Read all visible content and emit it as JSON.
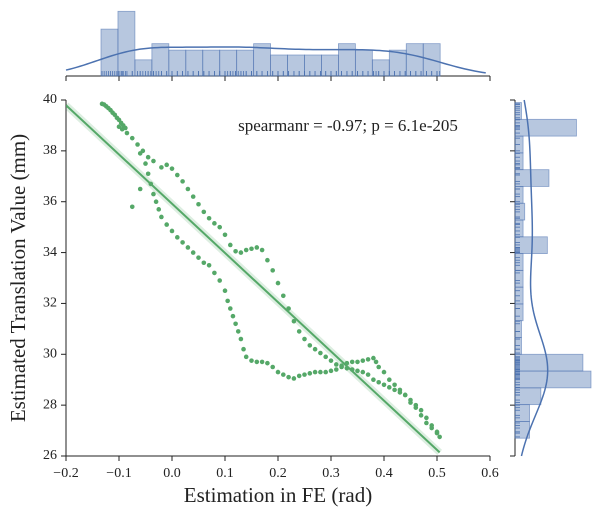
{
  "chart_data": {
    "type": "scatter",
    "annotation": "spearmanr = -0.97; p = 6.1e-205",
    "xlabel": "Estimation in FE (rad)",
    "ylabel": "Estimated Translation Value (mm)",
    "color": "#55a868",
    "regression": true,
    "xlim": [
      -0.2,
      0.6
    ],
    "ylim": [
      26,
      40
    ],
    "xticks": [
      {
        "value": -0.2,
        "label": "−0.2"
      },
      {
        "value": -0.1,
        "label": "−0.1"
      },
      {
        "value": 0,
        "label": "0.0"
      },
      0.1,
      0.2,
      0.3,
      0.4,
      0.5,
      0.6
    ],
    "yticks": [
      26,
      28,
      30,
      32,
      34,
      36,
      38,
      40
    ],
    "x": [
      -0.132,
      -0.128,
      -0.124,
      -0.12,
      -0.116,
      -0.112,
      -0.108,
      -0.104,
      -0.1,
      -0.096,
      -0.092,
      -0.088,
      -0.094,
      -0.1,
      -0.085,
      -0.075,
      -0.065,
      -0.055,
      -0.045,
      -0.035,
      -0.02,
      -0.01,
      0.0,
      0.01,
      0.02,
      0.03,
      0.04,
      0.05,
      0.06,
      0.07,
      0.08,
      0.09,
      0.1,
      0.11,
      0.12,
      0.13,
      0.14,
      0.15,
      0.16,
      0.17,
      0.18,
      0.19,
      0.2,
      0.21,
      0.22,
      0.23,
      0.24,
      0.25,
      0.26,
      0.27,
      0.28,
      0.29,
      0.3,
      0.31,
      0.32,
      0.33,
      0.34,
      0.35,
      0.36,
      0.37,
      0.38,
      0.39,
      0.4,
      0.41,
      0.42,
      0.43,
      0.44,
      0.45,
      0.46,
      0.47,
      0.48,
      0.49,
      0.5,
      0.505,
      -0.06,
      -0.05,
      -0.045,
      -0.04,
      -0.035,
      -0.03,
      -0.025,
      -0.02,
      -0.01,
      0.0,
      0.01,
      0.02,
      0.03,
      0.04,
      0.05,
      0.06,
      0.07,
      0.08,
      0.09,
      0.1,
      0.105,
      0.11,
      0.115,
      0.12,
      0.125,
      0.13,
      0.135,
      0.14,
      0.15,
      0.16,
      0.17,
      0.18,
      0.19,
      0.2,
      0.21,
      0.22,
      0.23,
      0.24,
      0.25,
      0.26,
      0.27,
      0.28,
      0.29,
      0.3,
      0.31,
      0.32,
      0.33,
      0.34,
      0.35,
      0.36,
      0.37,
      0.38,
      0.385,
      0.39,
      0.4,
      0.41,
      0.42,
      0.43,
      0.44,
      0.45,
      0.46,
      0.47,
      0.48,
      0.49,
      0.5,
      -0.06,
      -0.075
    ],
    "y": [
      39.85,
      39.82,
      39.75,
      39.68,
      39.6,
      39.5,
      39.42,
      39.3,
      39.22,
      39.1,
      39.0,
      38.9,
      38.85,
      38.95,
      38.7,
      38.5,
      38.25,
      38.0,
      37.75,
      37.6,
      37.35,
      37.45,
      37.3,
      37.05,
      36.8,
      36.5,
      36.2,
      35.9,
      35.6,
      35.35,
      35.15,
      35.0,
      34.7,
      34.3,
      34.05,
      34.0,
      34.1,
      34.15,
      34.2,
      34.1,
      33.7,
      33.3,
      32.8,
      32.3,
      31.8,
      31.3,
      30.9,
      30.6,
      30.35,
      30.2,
      30.05,
      29.9,
      29.75,
      29.6,
      29.5,
      29.45,
      29.4,
      29.35,
      29.3,
      29.2,
      29.0,
      28.9,
      28.8,
      28.7,
      28.6,
      28.5,
      28.4,
      28.2,
      28.0,
      27.8,
      27.5,
      27.2,
      26.9,
      26.75,
      37.9,
      37.5,
      37.1,
      36.7,
      36.3,
      36.0,
      35.7,
      35.4,
      35.1,
      34.85,
      34.6,
      34.4,
      34.2,
      34.0,
      33.8,
      33.6,
      33.5,
      33.2,
      32.9,
      32.5,
      32.1,
      31.8,
      31.5,
      31.2,
      30.9,
      30.6,
      30.2,
      29.9,
      29.75,
      29.7,
      29.7,
      29.65,
      29.5,
      29.3,
      29.2,
      29.1,
      29.05,
      29.15,
      29.2,
      29.25,
      29.3,
      29.3,
      29.3,
      29.35,
      29.4,
      29.55,
      29.65,
      29.7,
      29.7,
      29.75,
      29.8,
      29.85,
      29.7,
      29.5,
      29.3,
      29.0,
      28.8,
      28.6,
      28.4,
      28.1,
      27.9,
      27.6,
      27.3,
      27.1,
      26.95,
      36.5,
      35.8
    ],
    "marginal_x": {
      "color": "#4c72b0",
      "lim": [
        0,
        47
      ],
      "bins": [
        -0.134,
        -0.102,
        -0.07,
        -0.038,
        -0.006,
        0.026,
        0.058,
        0.09,
        0.122,
        0.154,
        0.186,
        0.218,
        0.25,
        0.282,
        0.314,
        0.346,
        0.378,
        0.41,
        0.442,
        0.474,
        0.506
      ],
      "counts": [
        29,
        40,
        10,
        20,
        16,
        16,
        16,
        16,
        16,
        20,
        13,
        13,
        13,
        13,
        20,
        16,
        10,
        16,
        20,
        20
      ]
    },
    "marginal_y": {
      "color": "#4c72b0",
      "lim": [
        0,
        47
      ],
      "bins": [
        26.7,
        27.36,
        28.02,
        28.68,
        29.34,
        30.0,
        30.66,
        31.32,
        31.98,
        32.64,
        33.3,
        33.96,
        34.62,
        35.28,
        35.94,
        36.6,
        37.26,
        37.92,
        38.58,
        39.24,
        39.9
      ],
      "counts": [
        9,
        9,
        16,
        47,
        42,
        4,
        4,
        5,
        5,
        5,
        5,
        20,
        5,
        6,
        5,
        21,
        5,
        5,
        38,
        4
      ]
    }
  }
}
